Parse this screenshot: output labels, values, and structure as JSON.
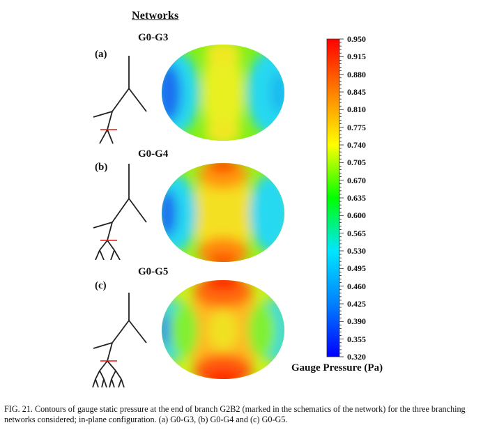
{
  "figure": {
    "title": "Networks",
    "colorbar": {
      "title": "Gauge Pressure (Pa)",
      "ticks": [
        "0.950",
        "0.915",
        "0.880",
        "0.845",
        "0.810",
        "0.775",
        "0.740",
        "0.705",
        "0.670",
        "0.635",
        "0.600",
        "0.565",
        "0.530",
        "0.495",
        "0.460",
        "0.425",
        "0.390",
        "0.355",
        "0.320"
      ],
      "colors": [
        "#0000ff",
        "#0080ff",
        "#00e6ff",
        "#00ff00",
        "#ffff00",
        "#ff8000",
        "#ff0000"
      ]
    },
    "panels": [
      {
        "label": "(a)",
        "network": "G0-G3",
        "generations": 3
      },
      {
        "label": "(b)",
        "network": "G0-G4",
        "generations": 4
      },
      {
        "label": "(c)",
        "network": "G0-G5",
        "generations": 5
      }
    ],
    "caption": "FIG. 21.  Contours of gauge static pressure at the end of branch G2B2 (marked in the schematics of the network) for the three branching networks considered; in-plane configuration. (a) G0-G3, (b) G0-G4 and (c) G0-G5."
  }
}
